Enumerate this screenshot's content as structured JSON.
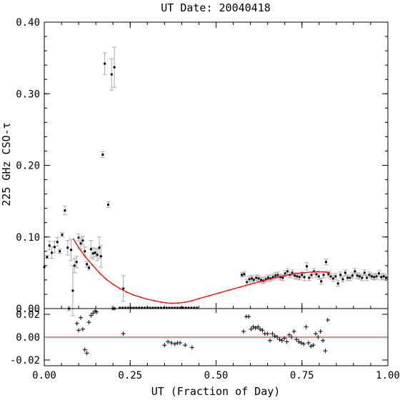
{
  "chart_data": {
    "type": "scatter",
    "title": "UT Date: 20040418",
    "xlabel": "UT (Fraction of Day)",
    "ylabel": "225 GHz CSO-τ",
    "xlim": [
      0.0,
      1.0
    ],
    "main_ylim": [
      0.0,
      0.4
    ],
    "resid_ylim": [
      -0.025,
      0.025
    ],
    "x_ticks": [
      "0.00",
      "0.25",
      "0.50",
      "0.75",
      "1.00"
    ],
    "main_y_ticks": [
      "0.00",
      "0.10",
      "0.20",
      "0.30",
      "0.40"
    ],
    "resid_y_ticks": [
      "-0.02",
      "0.00",
      "0.02"
    ],
    "series": [
      {
        "role": "measurements",
        "marker": "dot-with-errorbar",
        "points": [
          [
            0.0,
            0.058,
            0.0
          ],
          [
            0.008,
            0.072,
            0.002
          ],
          [
            0.015,
            0.088,
            0.006
          ],
          [
            0.022,
            0.078,
            0.008
          ],
          [
            0.03,
            0.086,
            0.008
          ],
          [
            0.038,
            0.093,
            0.006
          ],
          [
            0.045,
            0.08,
            0.003
          ],
          [
            0.052,
            0.103,
            0.003
          ],
          [
            0.06,
            0.137,
            0.006
          ],
          [
            0.068,
            0.085,
            0.01
          ],
          [
            0.072,
            0.0,
            0.003
          ],
          [
            0.078,
            0.082,
            0.015
          ],
          [
            0.083,
            0.025,
            0.035
          ],
          [
            0.088,
            0.06,
            0.01
          ],
          [
            0.094,
            0.065,
            0.008
          ],
          [
            0.1,
            0.099,
            0.005
          ],
          [
            0.106,
            0.091,
            0.008
          ],
          [
            0.112,
            0.095,
            0.006
          ],
          [
            0.118,
            0.08,
            0.006
          ],
          [
            0.124,
            0.062,
            0.004
          ],
          [
            0.13,
            0.057,
            0.003
          ],
          [
            0.136,
            0.083,
            0.012
          ],
          [
            0.142,
            0.077,
            0.008
          ],
          [
            0.148,
            0.078,
            0.006
          ],
          [
            0.154,
            0.075,
            0.008
          ],
          [
            0.16,
            0.085,
            0.015
          ],
          [
            0.165,
            0.073,
            0.015
          ],
          [
            0.17,
            0.215,
            0.004
          ],
          [
            0.176,
            0.342,
            0.015
          ],
          [
            0.186,
            0.145,
            0.004
          ],
          [
            0.196,
            0.327,
            0.022
          ],
          [
            0.2,
            0.0,
            0.002
          ],
          [
            0.204,
            0.337,
            0.028
          ],
          [
            0.23,
            0.028,
            0.018
          ],
          [
            0.205,
            0.0,
            0.0
          ]
        ]
      },
      {
        "role": "zero-tau",
        "marker": "dot",
        "x": [
          0.22,
          0.228,
          0.236,
          0.244,
          0.252,
          0.26,
          0.268,
          0.276,
          0.284,
          0.292,
          0.3,
          0.308,
          0.316,
          0.324,
          0.332,
          0.34,
          0.348,
          0.356,
          0.364,
          0.372,
          0.38,
          0.388,
          0.396,
          0.404,
          0.412,
          0.42,
          0.428,
          0.436,
          0.444
        ]
      },
      {
        "role": "measurements-late",
        "marker": "dot-with-errorbar",
        "points": [
          [
            0.575,
            0.047,
            0.003
          ],
          [
            0.582,
            0.048,
            0.003
          ],
          [
            0.59,
            0.037,
            0.004
          ],
          [
            0.597,
            0.041,
            0.004
          ],
          [
            0.604,
            0.042,
            0.004
          ],
          [
            0.61,
            0.04,
            0.004
          ],
          [
            0.617,
            0.043,
            0.004
          ],
          [
            0.624,
            0.042,
            0.004
          ],
          [
            0.631,
            0.04,
            0.004
          ],
          [
            0.638,
            0.039,
            0.004
          ],
          [
            0.645,
            0.041,
            0.004
          ],
          [
            0.652,
            0.043,
            0.004
          ],
          [
            0.659,
            0.042,
            0.004
          ],
          [
            0.666,
            0.044,
            0.004
          ],
          [
            0.673,
            0.046,
            0.004
          ],
          [
            0.68,
            0.047,
            0.004
          ],
          [
            0.687,
            0.044,
            0.004
          ],
          [
            0.694,
            0.043,
            0.004
          ],
          [
            0.701,
            0.049,
            0.004
          ],
          [
            0.708,
            0.052,
            0.004
          ],
          [
            0.715,
            0.047,
            0.004
          ],
          [
            0.722,
            0.05,
            0.004
          ],
          [
            0.729,
            0.046,
            0.004
          ],
          [
            0.736,
            0.045,
            0.004
          ],
          [
            0.743,
            0.044,
            0.004
          ],
          [
            0.75,
            0.047,
            0.004
          ],
          [
            0.757,
            0.044,
            0.005
          ],
          [
            0.764,
            0.059,
            0.005
          ],
          [
            0.771,
            0.043,
            0.004
          ],
          [
            0.778,
            0.047,
            0.004
          ],
          [
            0.785,
            0.052,
            0.004
          ],
          [
            0.792,
            0.048,
            0.004
          ],
          [
            0.799,
            0.045,
            0.004
          ],
          [
            0.806,
            0.038,
            0.004
          ],
          [
            0.813,
            0.047,
            0.004
          ],
          [
            0.82,
            0.065,
            0.004
          ],
          [
            0.827,
            0.048,
            0.004
          ],
          [
            0.834,
            0.045,
            0.004
          ],
          [
            0.841,
            0.042,
            0.004
          ],
          [
            0.848,
            0.045,
            0.004
          ],
          [
            0.855,
            0.035,
            0.004
          ],
          [
            0.862,
            0.047,
            0.004
          ],
          [
            0.869,
            0.041,
            0.004
          ],
          [
            0.876,
            0.05,
            0.004
          ],
          [
            0.883,
            0.043,
            0.004
          ],
          [
            0.89,
            0.043,
            0.004
          ],
          [
            0.897,
            0.046,
            0.004
          ],
          [
            0.904,
            0.052,
            0.004
          ],
          [
            0.911,
            0.046,
            0.004
          ],
          [
            0.918,
            0.045,
            0.004
          ],
          [
            0.925,
            0.043,
            0.004
          ],
          [
            0.932,
            0.05,
            0.004
          ],
          [
            0.939,
            0.043,
            0.004
          ],
          [
            0.946,
            0.047,
            0.004
          ],
          [
            0.953,
            0.045,
            0.004
          ],
          [
            0.96,
            0.044,
            0.004
          ],
          [
            0.967,
            0.045,
            0.004
          ],
          [
            0.974,
            0.049,
            0.004
          ],
          [
            0.981,
            0.044,
            0.004
          ],
          [
            0.988,
            0.045,
            0.004
          ],
          [
            0.995,
            0.043,
            0.004
          ]
        ]
      },
      {
        "role": "fit",
        "color": "#ff0000",
        "x": [
          0.085,
          0.1,
          0.12,
          0.14,
          0.16,
          0.18,
          0.2,
          0.22,
          0.24,
          0.26,
          0.28,
          0.3,
          0.32,
          0.34,
          0.355,
          0.37,
          0.39,
          0.41,
          0.43,
          0.45,
          0.48,
          0.51,
          0.54,
          0.57,
          0.6,
          0.63,
          0.66,
          0.69,
          0.72,
          0.75,
          0.78,
          0.8,
          0.82,
          0.83
        ],
        "y": [
          0.097,
          0.085,
          0.072,
          0.061,
          0.05,
          0.041,
          0.034,
          0.028,
          0.023,
          0.019,
          0.016,
          0.013,
          0.011,
          0.009,
          0.008,
          0.0075,
          0.0078,
          0.0088,
          0.011,
          0.014,
          0.018,
          0.022,
          0.026,
          0.03,
          0.034,
          0.038,
          0.042,
          0.045,
          0.048,
          0.05,
          0.051,
          0.0515,
          0.051,
          0.05
        ]
      },
      {
        "role": "residuals",
        "marker": "plus",
        "x": [
          0.095,
          0.1,
          0.106,
          0.112,
          0.118,
          0.124,
          0.13,
          0.136,
          0.142,
          0.148,
          0.152,
          0.23,
          0.35,
          0.36,
          0.37,
          0.38,
          0.388,
          0.395,
          0.41,
          0.43,
          0.58,
          0.588,
          0.595,
          0.602,
          0.608,
          0.615,
          0.622,
          0.628,
          0.635,
          0.642,
          0.65,
          0.657,
          0.664,
          0.671,
          0.678,
          0.685,
          0.692,
          0.699,
          0.706,
          0.713,
          0.72,
          0.727,
          0.734,
          0.741,
          0.748,
          0.755,
          0.762,
          0.769,
          0.776,
          0.783,
          0.79,
          0.797,
          0.804,
          0.811,
          0.818,
          0.825
        ],
        "y": [
          0.012,
          0.006,
          0.017,
          0.007,
          -0.011,
          -0.014,
          0.013,
          0.019,
          0.021,
          0.023,
          0.022,
          0.003,
          -0.007,
          -0.004,
          -0.005,
          -0.006,
          -0.005,
          -0.005,
          -0.007,
          -0.009,
          0.005,
          0.018,
          0.018,
          0.007,
          0.009,
          0.008,
          0.009,
          0.007,
          0.006,
          0.003,
          0.003,
          -0.003,
          0.003,
          0.001,
          0.0,
          -0.002,
          -0.003,
          -0.001,
          -0.004,
          0.002,
          0.0,
          0.005,
          -0.002,
          -0.004,
          -0.005,
          -0.006,
          0.009,
          -0.005,
          -0.008,
          -0.007,
          0.003,
          0.0,
          0.005,
          -0.003,
          -0.012,
          0.015
        ]
      }
    ],
    "grid": false,
    "legend": "none",
    "colors": {
      "fit": "#ff0000",
      "points": "#000000",
      "errorbars": "#aaaaaa",
      "zero_line": "#ff0000"
    }
  }
}
